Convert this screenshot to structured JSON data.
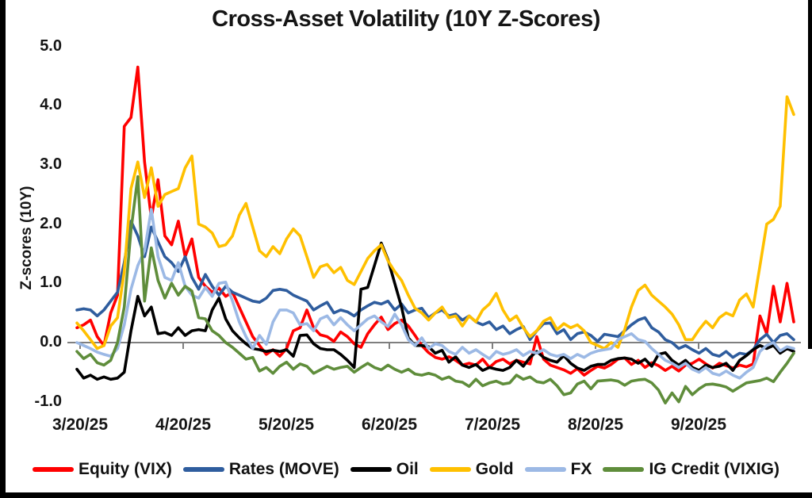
{
  "chart_data": {
    "type": "line",
    "title": "Cross-Asset Volatility (10Y Z-Scores)",
    "ylabel": "Z-scores (10Y)",
    "xlabel": "",
    "ylim": [
      -1.35,
      5.2
    ],
    "grid": false,
    "zero_line": true,
    "legend_position": "bottom",
    "y_ticks": [
      {
        "label": "5.0",
        "value": 5.0
      },
      {
        "label": "4.0",
        "value": 4.0
      },
      {
        "label": "3.0",
        "value": 3.0
      },
      {
        "label": "2.0",
        "value": 2.0
      },
      {
        "label": "1.0",
        "value": 1.0
      },
      {
        "label": "0.0",
        "value": 0.0
      },
      {
        "label": "-1.0",
        "value": -1.0
      }
    ],
    "x_tick_labels": [
      "3/20/25",
      "4/20/25",
      "5/20/25",
      "6/20/25",
      "7/20/25",
      "8/20/25",
      "9/20/25"
    ],
    "x_range_note": "daily z-scores from 3/20/25 to mid-Oct 2025, values sampled every 2 days",
    "series": [
      {
        "name": "Equity (VIX)",
        "color": "#FF0000",
        "values": [
          0.25,
          0.3,
          0.38,
          0.1,
          -0.05,
          0.5,
          0.8,
          3.65,
          3.8,
          4.65,
          3.05,
          2.1,
          2.75,
          1.8,
          1.65,
          2.05,
          1.45,
          1.75,
          1.1,
          0.95,
          0.85,
          0.92,
          0.78,
          0.85,
          0.6,
          0.35,
          0.1,
          -0.05,
          -0.2,
          -0.12,
          -0.23,
          -0.1,
          0.2,
          0.25,
          0.55,
          0.25,
          0.13,
          0.1,
          0.02,
          0.18,
          0.1,
          -0.02,
          -0.08,
          0.15,
          0.3,
          0.43,
          0.22,
          0.32,
          0.38,
          0.28,
          0.12,
          -0.05,
          -0.17,
          -0.25,
          -0.28,
          -0.24,
          -0.3,
          -0.38,
          -0.35,
          -0.38,
          -0.28,
          -0.42,
          -0.32,
          -0.28,
          -0.36,
          -0.3,
          -0.33,
          -0.36,
          0.1,
          -0.28,
          -0.38,
          -0.42,
          -0.46,
          -0.52,
          -0.44,
          -0.55,
          -0.47,
          -0.4,
          -0.43,
          -0.37,
          -0.28,
          -0.26,
          -0.37,
          -0.3,
          -0.42,
          -0.34,
          -0.39,
          -0.47,
          -0.4,
          -0.48,
          -0.38,
          -0.35,
          -0.28,
          -0.36,
          -0.43,
          -0.35,
          -0.39,
          -0.43,
          -0.38,
          -0.41,
          -0.36,
          0.45,
          0.15,
          0.95,
          0.35,
          1.0,
          0.35
        ]
      },
      {
        "name": "Rates (MOVE)",
        "color": "#2F5D9E",
        "values": [
          0.55,
          0.57,
          0.55,
          0.45,
          0.55,
          0.7,
          0.85,
          1.35,
          2.05,
          1.8,
          1.45,
          1.95,
          1.7,
          1.45,
          1.35,
          1.2,
          1.45,
          1.1,
          0.9,
          1.15,
          0.95,
          0.8,
          0.95,
          0.85,
          0.8,
          0.75,
          0.7,
          0.68,
          0.75,
          0.88,
          0.9,
          0.88,
          0.8,
          0.75,
          0.7,
          0.55,
          0.62,
          0.68,
          0.5,
          0.55,
          0.52,
          0.45,
          0.55,
          0.62,
          0.68,
          0.65,
          0.7,
          0.55,
          0.65,
          0.5,
          0.55,
          0.58,
          0.42,
          0.5,
          0.55,
          0.45,
          0.48,
          0.38,
          0.45,
          0.35,
          0.3,
          0.35,
          0.22,
          0.28,
          0.15,
          0.22,
          0.27,
          0.05,
          0.2,
          0.32,
          0.33,
          0.15,
          0.22,
          0.05,
          0.15,
          0.18,
          0.12,
          0.02,
          0.14,
          0.12,
          0.1,
          0.2,
          0.3,
          0.38,
          0.42,
          0.25,
          0.18,
          0.05,
          0.0,
          -0.1,
          -0.05,
          -0.12,
          -0.18,
          -0.1,
          -0.2,
          -0.23,
          -0.15,
          -0.25,
          -0.18,
          -0.2,
          -0.12,
          0.05,
          0.14,
          0.0,
          0.12,
          0.15,
          0.05
        ]
      },
      {
        "name": "Oil",
        "color": "#000000",
        "values": [
          -0.45,
          -0.6,
          -0.55,
          -0.62,
          -0.58,
          -0.62,
          -0.6,
          -0.5,
          0.2,
          0.78,
          0.45,
          0.6,
          0.15,
          0.17,
          0.12,
          0.25,
          0.12,
          0.2,
          0.22,
          0.2,
          0.55,
          0.75,
          0.4,
          0.2,
          0.08,
          -0.02,
          -0.1,
          -0.12,
          -0.15,
          -0.13,
          -0.15,
          -0.12,
          -0.23,
          0.12,
          0.13,
          -0.02,
          -0.1,
          -0.12,
          -0.12,
          -0.2,
          -0.3,
          -0.42,
          0.9,
          0.93,
          1.3,
          1.68,
          1.4,
          1.0,
          0.6,
          0.08,
          -0.05,
          -0.05,
          -0.07,
          -0.18,
          -0.13,
          -0.33,
          -0.24,
          -0.38,
          -0.42,
          -0.37,
          -0.47,
          -0.42,
          -0.45,
          -0.47,
          -0.42,
          -0.3,
          -0.4,
          -0.25,
          -0.15,
          -0.25,
          -0.3,
          -0.33,
          -0.22,
          -0.35,
          -0.43,
          -0.47,
          -0.4,
          -0.37,
          -0.37,
          -0.3,
          -0.27,
          -0.26,
          -0.28,
          -0.35,
          -0.28,
          -0.4,
          -0.2,
          -0.17,
          -0.3,
          -0.38,
          -0.3,
          -0.42,
          -0.47,
          -0.38,
          -0.42,
          -0.4,
          -0.35,
          -0.47,
          -0.3,
          -0.22,
          -0.12,
          -0.05,
          -0.1,
          -0.05,
          -0.18,
          -0.1,
          -0.15
        ]
      },
      {
        "name": "Gold",
        "color": "#FFC000",
        "values": [
          0.33,
          0.2,
          0.05,
          -0.1,
          -0.05,
          0.28,
          0.42,
          1.2,
          2.6,
          3.05,
          2.45,
          2.95,
          2.3,
          2.5,
          2.55,
          2.6,
          2.95,
          3.15,
          2.0,
          1.95,
          1.85,
          1.62,
          1.65,
          1.8,
          2.15,
          2.35,
          1.95,
          1.55,
          1.45,
          1.62,
          1.5,
          1.75,
          1.92,
          1.8,
          1.45,
          1.1,
          1.28,
          1.32,
          1.18,
          1.27,
          1.05,
          0.98,
          1.2,
          1.42,
          1.55,
          1.65,
          1.38,
          1.2,
          1.05,
          0.8,
          0.58,
          0.5,
          0.38,
          0.5,
          0.6,
          0.42,
          0.45,
          0.28,
          0.45,
          0.35,
          0.55,
          0.65,
          0.83,
          0.55,
          0.37,
          0.45,
          0.25,
          0.1,
          0.2,
          0.36,
          0.42,
          0.22,
          0.32,
          0.25,
          0.3,
          0.2,
          0.0,
          -0.05,
          -0.1,
          0.0,
          -0.08,
          0.22,
          0.6,
          0.88,
          0.97,
          0.8,
          0.7,
          0.6,
          0.48,
          0.3,
          0.05,
          0.05,
          0.22,
          0.36,
          0.25,
          0.42,
          0.5,
          0.45,
          0.72,
          0.82,
          0.6,
          1.3,
          2.0,
          2.08,
          2.3,
          4.15,
          3.85
        ]
      },
      {
        "name": "FX",
        "color": "#9CB9E5",
        "values": [
          0.0,
          -0.05,
          -0.1,
          -0.16,
          -0.2,
          -0.23,
          -0.1,
          0.3,
          0.9,
          1.3,
          1.55,
          2.25,
          1.45,
          1.1,
          1.05,
          1.35,
          0.95,
          0.8,
          0.75,
          0.93,
          0.78,
          1.0,
          1.02,
          0.7,
          0.35,
          0.1,
          -0.1,
          0.12,
          -0.03,
          0.35,
          0.55,
          0.55,
          0.5,
          0.3,
          0.32,
          0.2,
          0.4,
          0.45,
          0.3,
          0.42,
          0.3,
          0.2,
          0.3,
          0.4,
          0.45,
          0.35,
          0.27,
          0.48,
          0.3,
          0.05,
          -0.05,
          0.08,
          -0.1,
          -0.02,
          -0.05,
          -0.15,
          -0.2,
          -0.08,
          -0.18,
          -0.12,
          -0.2,
          -0.27,
          -0.15,
          -0.2,
          -0.17,
          -0.12,
          -0.22,
          -0.15,
          -0.18,
          -0.12,
          -0.2,
          -0.23,
          -0.2,
          -0.27,
          -0.2,
          -0.25,
          -0.18,
          -0.14,
          -0.12,
          -0.1,
          0.05,
          0.1,
          0.15,
          0.05,
          0.02,
          -0.1,
          -0.2,
          -0.3,
          -0.35,
          -0.42,
          -0.35,
          -0.45,
          -0.5,
          -0.42,
          -0.52,
          -0.55,
          -0.48,
          -0.55,
          -0.6,
          -0.5,
          -0.42,
          -0.15,
          -0.05,
          0.0,
          -0.14,
          -0.07,
          -0.1
        ]
      },
      {
        "name": "IG Credit (VIXIG)",
        "color": "#5F8D3B",
        "values": [
          -0.15,
          -0.27,
          -0.2,
          -0.34,
          -0.38,
          -0.3,
          0.0,
          0.6,
          1.9,
          2.8,
          0.7,
          1.6,
          1.05,
          0.75,
          1.0,
          0.8,
          0.95,
          0.87,
          0.42,
          0.4,
          0.2,
          0.12,
          0.0,
          -0.08,
          -0.18,
          -0.28,
          -0.25,
          -0.48,
          -0.42,
          -0.52,
          -0.4,
          -0.33,
          -0.45,
          -0.36,
          -0.4,
          -0.52,
          -0.46,
          -0.4,
          -0.45,
          -0.42,
          -0.4,
          -0.5,
          -0.42,
          -0.35,
          -0.42,
          -0.46,
          -0.38,
          -0.45,
          -0.5,
          -0.45,
          -0.53,
          -0.55,
          -0.52,
          -0.55,
          -0.62,
          -0.58,
          -0.65,
          -0.67,
          -0.74,
          -0.62,
          -0.73,
          -0.68,
          -0.65,
          -0.7,
          -0.68,
          -0.55,
          -0.62,
          -0.58,
          -0.66,
          -0.68,
          -0.62,
          -0.73,
          -0.88,
          -0.85,
          -0.7,
          -0.65,
          -0.78,
          -0.65,
          -0.64,
          -0.63,
          -0.65,
          -0.72,
          -0.65,
          -0.63,
          -0.62,
          -0.68,
          -0.8,
          -1.02,
          -0.85,
          -1.0,
          -0.74,
          -0.88,
          -0.78,
          -0.71,
          -0.7,
          -0.72,
          -0.75,
          -0.82,
          -0.75,
          -0.68,
          -0.66,
          -0.64,
          -0.6,
          -0.66,
          -0.5,
          -0.35,
          -0.18
        ]
      }
    ],
    "style": {
      "zero_line_color": "#7F7F7F",
      "text_color": "#151515",
      "background": "#FFFFFF",
      "frame_color": "#000000",
      "line_width": 3.6
    }
  }
}
